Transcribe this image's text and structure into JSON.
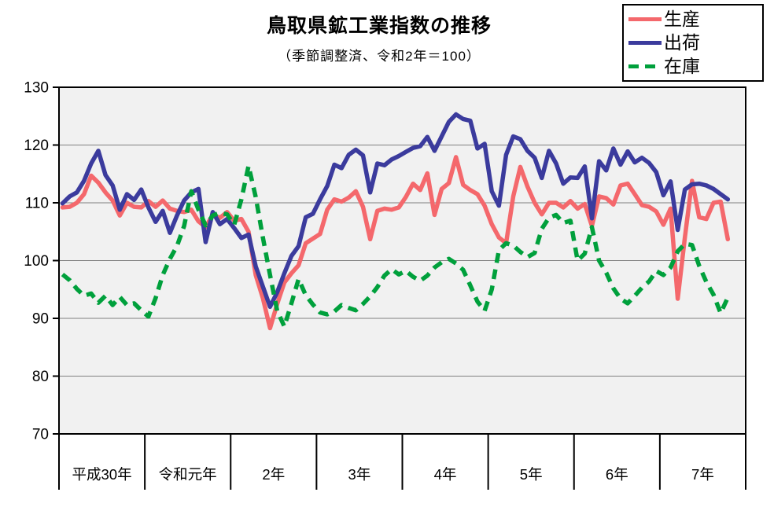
{
  "chart_data": {
    "type": "line",
    "title": "鳥取県鉱工業指数の推移",
    "subtitle": "（季節調整済、令和2年＝100）",
    "legend_position": "top-right",
    "grid": true,
    "frequency": "monthly",
    "x_axis": {
      "period_labels": [
        "平成30年",
        "令和元年",
        "2年",
        "3年",
        "4年",
        "5年",
        "6年",
        "7年"
      ],
      "months_per_period": 12,
      "total_month_slots": 96
    },
    "y_axis": {
      "min": 70,
      "max": 130,
      "ticks": [
        70,
        80,
        90,
        100,
        110,
        120,
        130
      ]
    },
    "colors": {
      "plot_background": "#F1F1F1",
      "gridline": "#808080",
      "axis": "#000000"
    },
    "series": [
      {
        "name": "生産",
        "id": "production",
        "color": "#F4686C",
        "dash": false,
        "values": [
          109.2,
          109.3,
          110.0,
          111.5,
          114.7,
          113.5,
          111.8,
          110.4,
          107.8,
          110.0,
          109.3,
          109.2,
          110.3,
          109.3,
          110.4,
          109.0,
          108.6,
          108.4,
          108.8,
          106.8,
          105.8,
          107.9,
          107.4,
          108.4,
          106.9,
          107.2,
          105.0,
          97.5,
          93.5,
          88.3,
          92.5,
          96.2,
          97.8,
          99.2,
          103.0,
          103.8,
          104.6,
          108.8,
          110.6,
          110.2,
          110.9,
          112.0,
          109.3,
          103.7,
          108.6,
          109.0,
          108.8,
          109.2,
          111.0,
          113.3,
          112.2,
          115.1,
          107.9,
          112.4,
          113.4,
          117.9,
          113.1,
          112.2,
          111.5,
          109.5,
          106.3,
          104.0,
          103.0,
          111.1,
          116.2,
          112.8,
          110.0,
          108.0,
          110.0,
          110.0,
          109.2,
          110.3,
          109.0,
          109.8,
          106.0,
          111.1,
          110.8,
          109.7,
          113.0,
          113.3,
          111.5,
          109.6,
          109.3,
          108.5,
          106.2,
          109.0,
          93.4,
          104.0,
          113.8,
          107.5,
          107.2,
          110.0,
          110.2,
          103.7
        ]
      },
      {
        "name": "出荷",
        "id": "shipments",
        "color": "#3B3B9D",
        "dash": false,
        "values": [
          109.9,
          111.1,
          111.8,
          113.8,
          116.8,
          119.0,
          114.8,
          113.0,
          108.8,
          111.5,
          110.5,
          112.3,
          109.2,
          106.7,
          108.6,
          104.8,
          107.8,
          110.4,
          111.8,
          112.4,
          103.2,
          108.4,
          106.3,
          107.2,
          105.6,
          103.9,
          104.5,
          99.0,
          95.5,
          92.0,
          94.5,
          97.8,
          100.8,
          102.5,
          107.5,
          108.1,
          110.6,
          112.9,
          116.6,
          116.0,
          118.3,
          119.2,
          118.2,
          111.8,
          116.8,
          116.5,
          117.5,
          118.1,
          118.8,
          119.5,
          119.8,
          121.4,
          119.0,
          121.5,
          124.0,
          125.3,
          124.5,
          124.2,
          119.4,
          120.2,
          112.0,
          109.5,
          118.3,
          121.5,
          121.0,
          119.0,
          117.8,
          114.3,
          119.0,
          116.8,
          113.3,
          114.4,
          114.3,
          116.3,
          107.3,
          117.2,
          115.6,
          119.4,
          116.6,
          118.9,
          117.0,
          117.8,
          116.9,
          115.3,
          111.3,
          113.7,
          105.3,
          112.3,
          113.2,
          113.3,
          113.0,
          112.4,
          111.5,
          110.6
        ]
      },
      {
        "name": "在庫",
        "id": "inventory",
        "color": "#00A03C",
        "dash": true,
        "values": [
          97.6,
          96.6,
          95.1,
          93.9,
          94.3,
          92.7,
          93.9,
          92.3,
          93.7,
          92.3,
          92.6,
          91.4,
          90.3,
          93.5,
          97.5,
          100.3,
          102.5,
          106.0,
          112.0,
          108.8,
          106.1,
          107.8,
          108.3,
          108.0,
          106.2,
          110.6,
          116.4,
          111.0,
          104.0,
          97.5,
          91.3,
          88.6,
          92.6,
          96.8,
          94.0,
          92.4,
          91.0,
          90.7,
          91.2,
          92.3,
          91.8,
          91.4,
          92.5,
          93.8,
          95.4,
          97.4,
          98.5,
          97.6,
          98.2,
          97.2,
          96.5,
          97.4,
          98.8,
          99.7,
          100.3,
          99.5,
          98.4,
          95.7,
          92.9,
          91.3,
          95.0,
          101.8,
          103.0,
          102.6,
          101.5,
          100.6,
          101.3,
          105.5,
          107.4,
          107.9,
          106.5,
          106.9,
          100.0,
          101.2,
          105.8,
          100.0,
          97.9,
          95.2,
          93.4,
          92.6,
          93.9,
          95.3,
          96.4,
          98.2,
          97.5,
          98.8,
          101.6,
          102.9,
          102.7,
          99.1,
          96.3,
          94.1,
          90.9,
          93.6
        ]
      }
    ]
  }
}
